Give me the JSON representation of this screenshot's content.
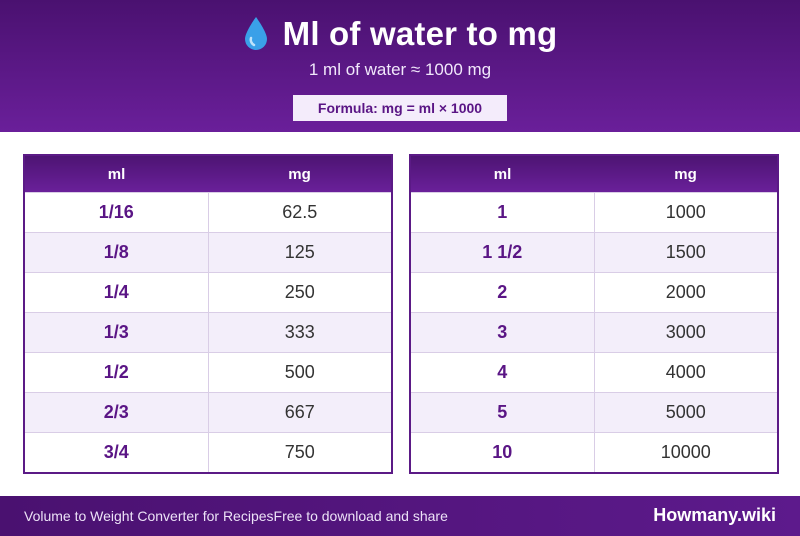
{
  "header": {
    "title": "Ml of water to mg",
    "subtitle": "1 ml of water ≈ 1000 mg",
    "formula": "Formula: mg = ml × 1000",
    "icon": "water-drop-icon"
  },
  "tables": [
    {
      "headers": [
        "ml",
        "mg"
      ],
      "rows": [
        [
          "1/16",
          "62.5"
        ],
        [
          "1/8",
          "125"
        ],
        [
          "1/4",
          "250"
        ],
        [
          "1/3",
          "333"
        ],
        [
          "1/2",
          "500"
        ],
        [
          "2/3",
          "667"
        ],
        [
          "3/4",
          "750"
        ]
      ]
    },
    {
      "headers": [
        "ml",
        "mg"
      ],
      "rows": [
        [
          "1",
          "1000"
        ],
        [
          "1 1/2",
          "1500"
        ],
        [
          "2",
          "2000"
        ],
        [
          "3",
          "3000"
        ],
        [
          "4",
          "4000"
        ],
        [
          "5",
          "5000"
        ],
        [
          "10",
          "10000"
        ]
      ]
    }
  ],
  "footer": {
    "left": "Volume to Weight Converter for Recipes",
    "tagline": "Free to download and share",
    "brand": "Howmany.wiki"
  },
  "colors": {
    "primary": "#5b1a86",
    "accent": "#6a1f9a",
    "drop": "#3aa0e8"
  }
}
